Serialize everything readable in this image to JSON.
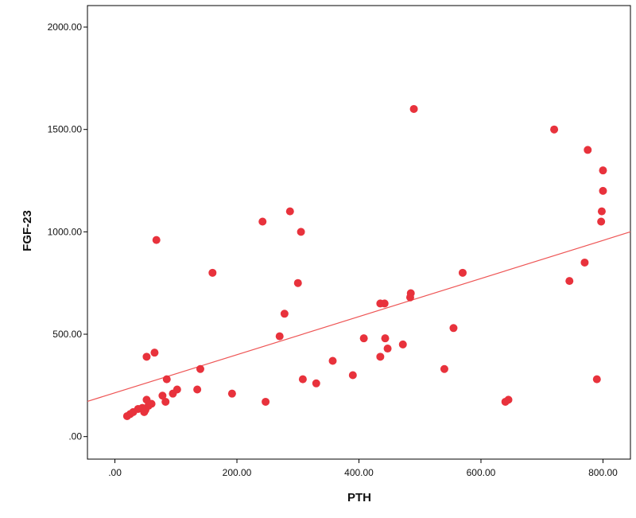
{
  "chart_data": {
    "type": "scatter",
    "title": "",
    "xlabel": "PTH",
    "ylabel": "FGF-23",
    "xlim": [
      -45,
      845
    ],
    "ylim": [
      -110,
      2105
    ],
    "x_ticks": [
      0,
      200,
      400,
      600,
      800
    ],
    "x_tick_labels": [
      ".00",
      "200.00",
      "400.00",
      "600.00",
      "800.00"
    ],
    "y_ticks": [
      0,
      500,
      1000,
      1500,
      2000
    ],
    "y_tick_labels": [
      ".00",
      "500.00",
      "1000.00",
      "1500.00",
      "2000.00"
    ],
    "grid": false,
    "legend": "none",
    "point_color": "#e8323c",
    "line_color": "#ee5555",
    "fit_line": {
      "x": [
        -45,
        845
      ],
      "y": [
        172,
        1000
      ]
    },
    "points": [
      [
        20,
        100
      ],
      [
        25,
        110
      ],
      [
        30,
        120
      ],
      [
        38,
        135
      ],
      [
        45,
        140
      ],
      [
        50,
        130
      ],
      [
        48,
        120
      ],
      [
        52,
        180
      ],
      [
        55,
        150
      ],
      [
        60,
        160
      ],
      [
        52,
        390
      ],
      [
        65,
        410
      ],
      [
        68,
        960
      ],
      [
        78,
        200
      ],
      [
        83,
        170
      ],
      [
        85,
        280
      ],
      [
        95,
        210
      ],
      [
        102,
        230
      ],
      [
        135,
        230
      ],
      [
        140,
        330
      ],
      [
        160,
        800
      ],
      [
        192,
        210
      ],
      [
        242,
        1050
      ],
      [
        247,
        170
      ],
      [
        270,
        490
      ],
      [
        278,
        600
      ],
      [
        287,
        1100
      ],
      [
        300,
        750
      ],
      [
        305,
        1000
      ],
      [
        308,
        280
      ],
      [
        330,
        260
      ],
      [
        357,
        370
      ],
      [
        390,
        300
      ],
      [
        408,
        480
      ],
      [
        435,
        390
      ],
      [
        435,
        650
      ],
      [
        442,
        650
      ],
      [
        443,
        480
      ],
      [
        447,
        430
      ],
      [
        472,
        450
      ],
      [
        485,
        700
      ],
      [
        484,
        680
      ],
      [
        490,
        1600
      ],
      [
        540,
        330
      ],
      [
        555,
        530
      ],
      [
        570,
        800
      ],
      [
        640,
        170
      ],
      [
        645,
        180
      ],
      [
        720,
        1500
      ],
      [
        745,
        760
      ],
      [
        770,
        850
      ],
      [
        775,
        1400
      ],
      [
        790,
        280
      ],
      [
        797,
        1050
      ],
      [
        798,
        1100
      ],
      [
        800,
        1200
      ],
      [
        800,
        1300
      ]
    ]
  }
}
